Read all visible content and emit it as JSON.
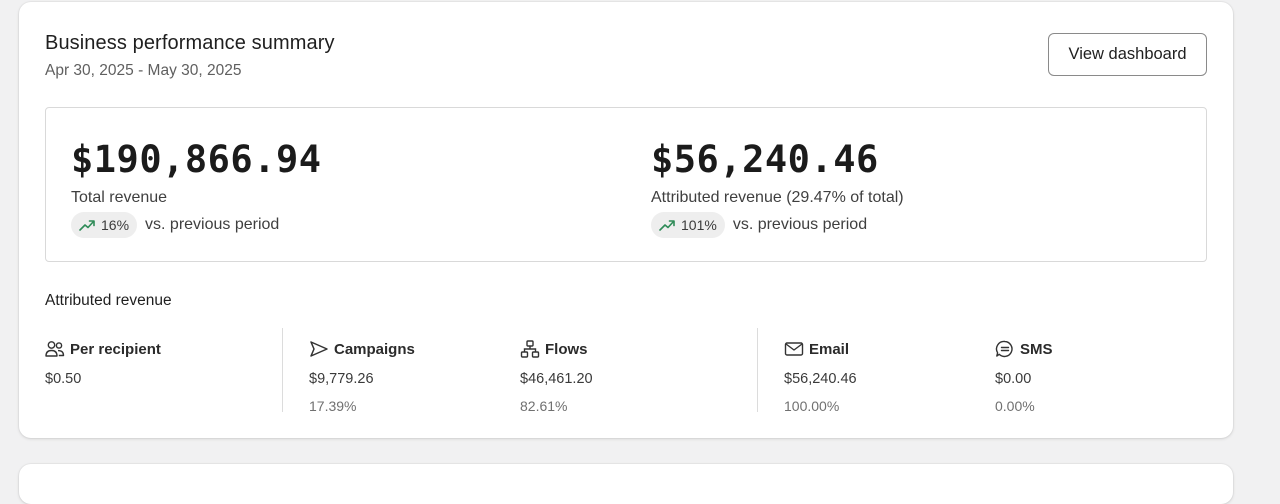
{
  "header": {
    "title": "Business performance summary",
    "date_range": "Apr 30, 2025 - May 30, 2025",
    "view_button_label": "View dashboard"
  },
  "metrics": [
    {
      "value": "$190,866.94",
      "label": "Total revenue",
      "trend_pct": "16%",
      "trend_suffix": "vs. previous period",
      "trend_icon": "trending-up-icon"
    },
    {
      "value": "$56,240.46",
      "label": "Attributed revenue (29.47% of total)",
      "trend_pct": "101%",
      "trend_suffix": "vs. previous period",
      "trend_icon": "trending-up-icon"
    }
  ],
  "attributed": {
    "title": "Attributed revenue",
    "columns": [
      {
        "label": "Per recipient",
        "icon": "users-icon",
        "value": "$0.50",
        "pct": ""
      },
      {
        "label": "Campaigns",
        "icon": "send-icon",
        "value": "$9,779.26",
        "pct": "17.39%"
      },
      {
        "label": "Flows",
        "icon": "flow-icon",
        "value": "$46,461.20",
        "pct": "82.61%"
      },
      {
        "label": "Email",
        "icon": "mail-icon",
        "value": "$56,240.46",
        "pct": "100.00%"
      },
      {
        "label": "SMS",
        "icon": "sms-icon",
        "value": "$0.00",
        "pct": "0.00%"
      }
    ]
  },
  "colors": {
    "trend_up": "#2e8b57",
    "border": "#d9d9d9"
  }
}
